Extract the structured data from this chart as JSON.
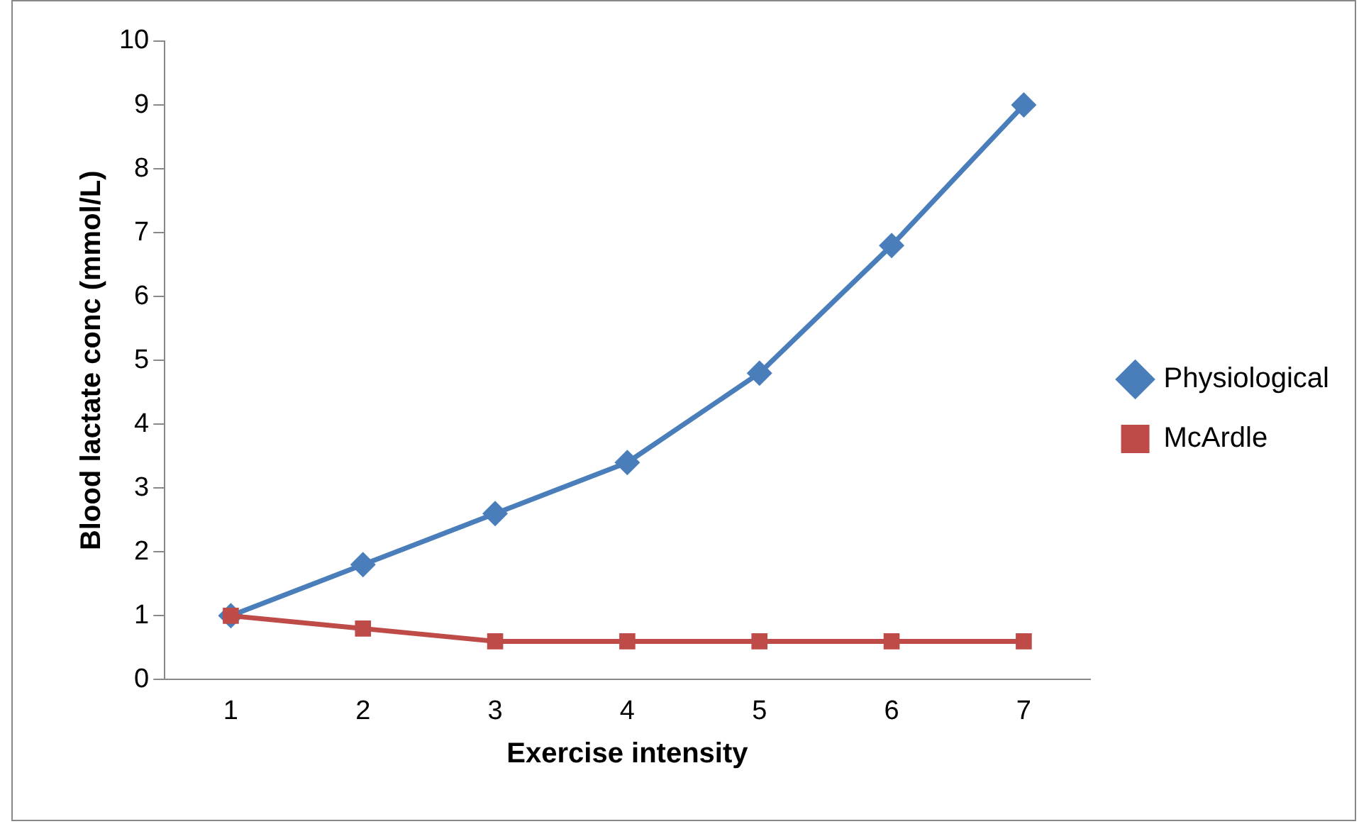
{
  "chart_data": {
    "type": "line",
    "xlabel": "Exercise intensity",
    "ylabel": "Blood lactate conc (mmol/L)",
    "categories": [
      "1",
      "2",
      "3",
      "4",
      "5",
      "6",
      "7"
    ],
    "ylim": [
      0,
      10
    ],
    "yticks": [
      0,
      1,
      2,
      3,
      4,
      5,
      6,
      7,
      8,
      9,
      10
    ],
    "grid": false,
    "legend": "right",
    "line_style": "solid",
    "series": [
      {
        "name": "Physiological",
        "color": "#4a7ebb",
        "marker": "diamond",
        "values": [
          1,
          1.8,
          2.6,
          3.4,
          4.8,
          6.8,
          9
        ]
      },
      {
        "name": "McArdle",
        "color": "#be4b48",
        "marker": "square",
        "values": [
          1,
          0.8,
          0.6,
          0.6,
          0.6,
          0.6,
          0.6
        ]
      }
    ]
  }
}
